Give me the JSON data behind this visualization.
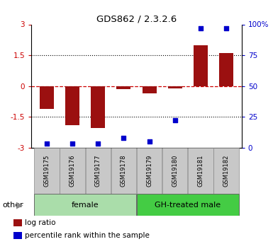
{
  "title": "GDS862 / 2.3.2.6",
  "samples": [
    "GSM19175",
    "GSM19176",
    "GSM19177",
    "GSM19178",
    "GSM19179",
    "GSM19180",
    "GSM19181",
    "GSM19182"
  ],
  "log_ratios": [
    -1.1,
    -1.9,
    -2.05,
    -0.15,
    -0.35,
    -0.1,
    2.0,
    1.6
  ],
  "percentile_ranks": [
    3,
    3,
    3,
    8,
    5,
    22,
    97,
    97
  ],
  "ylim_left": [
    -3,
    3
  ],
  "ylim_right": [
    0,
    100
  ],
  "yticks_left": [
    -3,
    -1.5,
    0,
    1.5,
    3
  ],
  "ytick_labels_left": [
    "-3",
    "-1.5",
    "0",
    "1.5",
    "3"
  ],
  "yticks_right": [
    0,
    25,
    50,
    75,
    100
  ],
  "ytick_labels_right": [
    "0",
    "25",
    "50",
    "75",
    "100%"
  ],
  "bar_color": "#9B1010",
  "dot_color": "#0000CC",
  "groups": [
    {
      "label": "female",
      "start": 0,
      "end": 3,
      "color": "#AADDAA"
    },
    {
      "label": "GH-treated male",
      "start": 4,
      "end": 7,
      "color": "#44CC44"
    }
  ],
  "hline_color": "#CC0000",
  "dotted_lines": [
    -1.5,
    1.5
  ],
  "bg_color": "white",
  "legend_items": [
    {
      "label": "log ratio",
      "color": "#9B1010"
    },
    {
      "label": "percentile rank within the sample",
      "color": "#0000CC"
    }
  ],
  "other_label": "other",
  "bar_width": 0.55,
  "dot_size": 22,
  "sample_box_color": "#C8C8C8",
  "left_ycolor": "#CC0000",
  "right_ycolor": "#0000CC"
}
